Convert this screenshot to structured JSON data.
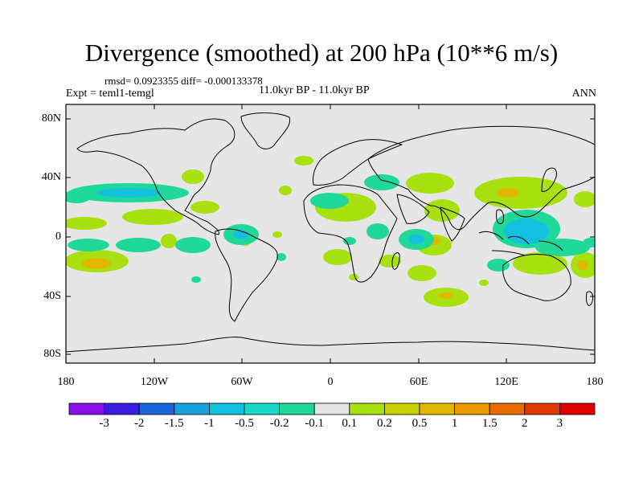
{
  "title": "Divergence (smoothed) at 200 hPa (10**6 m/s)",
  "stats": "rmsd= 0.0923355 diff= -0.000133378",
  "experiment": "Expt = teml1-temgl",
  "period": "11.0kyr BP - 11.0kyr BP",
  "season": "ANN",
  "lat_ticks": [
    "80N",
    "40N",
    "0",
    "40S",
    "80S"
  ],
  "lon_ticks": [
    "180",
    "120W",
    "60W",
    "0",
    "60E",
    "120E",
    "180"
  ],
  "colorbar": {
    "labels": [
      "-3",
      "-2",
      "-1.5",
      "-1",
      "-0.5",
      "-0.2",
      "-0.1",
      "0.1",
      "0.2",
      "0.5",
      "1",
      "1.5",
      "2",
      "3"
    ],
    "colors": [
      "#8a10e8",
      "#3a1ee0",
      "#1c62d8",
      "#18a0dc",
      "#14c0e0",
      "#18d8c8",
      "#20d898",
      "#e6e6e6",
      "#a8e010",
      "#c8d000",
      "#e0b800",
      "#e89a00",
      "#e86a00",
      "#e03800",
      "#e00000"
    ]
  },
  "colors": {
    "ocean": "#e6e6e6",
    "coast": "#000000"
  }
}
